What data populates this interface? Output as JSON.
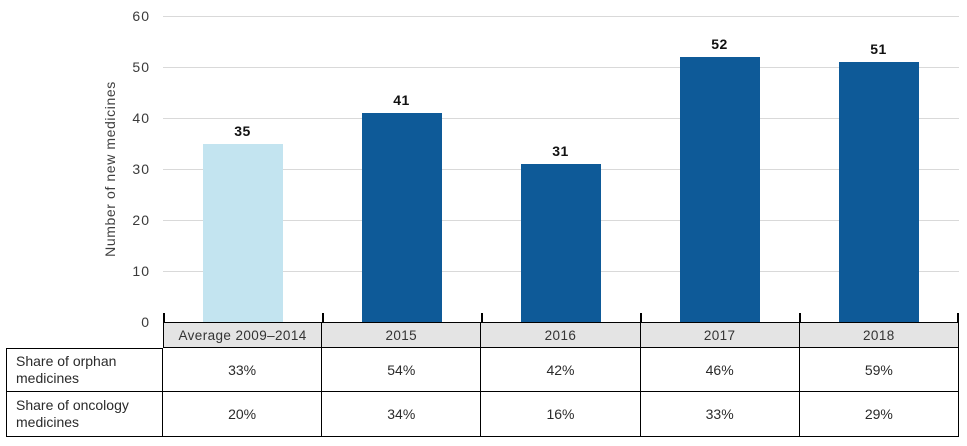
{
  "chart_data": {
    "type": "bar",
    "title": "",
    "xlabel": "",
    "ylabel": "Number of new medicines",
    "ylim": [
      0,
      60
    ],
    "yticks": [
      0,
      10,
      20,
      30,
      40,
      50,
      60
    ],
    "grid": "horizontal",
    "legend": "none",
    "categories": [
      "Average 2009–2014",
      "2015",
      "2016",
      "2017",
      "2018"
    ],
    "values": [
      35,
      41,
      31,
      52,
      51
    ],
    "bar_colors": [
      "#c3e4f0",
      "#0e5a98",
      "#0e5a98",
      "#0e5a98",
      "#0e5a98"
    ],
    "gridline_color": "#d9d9d9",
    "header_band_color": "#e4e4e4",
    "table": {
      "rows": [
        {
          "label": "Share of orphan medicines",
          "values": [
            "33%",
            "54%",
            "42%",
            "46%",
            "59%"
          ]
        },
        {
          "label": "Share of oncology medicines",
          "values": [
            "20%",
            "34%",
            "16%",
            "33%",
            "29%"
          ]
        }
      ]
    }
  }
}
